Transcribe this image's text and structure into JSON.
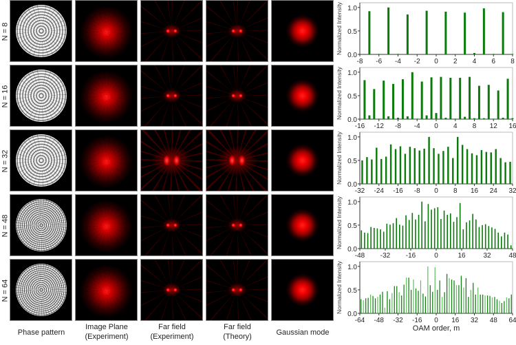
{
  "rows": [
    {
      "label": "N = 8",
      "dense": false,
      "far_big": false
    },
    {
      "label": "N = 16",
      "dense": false,
      "far_big": false
    },
    {
      "label": "N = 32",
      "dense": false,
      "far_big": true
    },
    {
      "label": "N = 48",
      "dense": true,
      "far_big": false
    },
    {
      "label": "N = 64",
      "dense": true,
      "far_big": false
    }
  ],
  "columns": [
    {
      "line1": "Phase pattern",
      "line2": ""
    },
    {
      "line1": "Image Plane",
      "line2": "(Experiment)"
    },
    {
      "line1": "Far field",
      "line2": "(Experiment)"
    },
    {
      "line1": "Far field",
      "line2": "(Theory)"
    },
    {
      "line1": "Gaussian mode",
      "line2": ""
    }
  ],
  "colors": {
    "bar": "#0a7a0a",
    "bar_light": "#5fbf5f",
    "axis": "#888888",
    "spot": "#ff0000"
  },
  "chart_data": [
    {
      "type": "bar",
      "N": 8,
      "ylabel": "Normalized Intensity",
      "xlabel": "",
      "xlim": [
        -8,
        8
      ],
      "ylim": [
        0,
        1.1
      ],
      "yticks": [
        0.0,
        0.5,
        1.0
      ],
      "xticks": [
        -8,
        -6,
        -4,
        -2,
        0,
        2,
        4,
        6,
        8
      ],
      "m": [
        -7,
        -6,
        -5,
        -4,
        -3,
        -2,
        -1,
        0,
        1,
        2,
        3,
        4,
        5,
        6,
        7,
        8
      ],
      "values": [
        0.92,
        0.01,
        1.0,
        0.01,
        0.85,
        0.0,
        0.93,
        0.0,
        0.91,
        0.0,
        0.89,
        0.03,
        0.98,
        0.01,
        0.9,
        0.01
      ]
    },
    {
      "type": "bar",
      "N": 16,
      "ylabel": "Normalized Intensity",
      "xlabel": "",
      "xlim": [
        -16,
        16
      ],
      "ylim": [
        0,
        1.1
      ],
      "yticks": [
        0.0,
        0.5,
        1.0
      ],
      "xticks": [
        -16,
        -12,
        -8,
        -4,
        0,
        4,
        8,
        12,
        16
      ],
      "m": [
        -15,
        -14,
        -13,
        -12,
        -11,
        -10,
        -9,
        -8,
        -7,
        -6,
        -5,
        -4,
        -3,
        -2,
        -1,
        0,
        1,
        2,
        3,
        4,
        5,
        6,
        7,
        8,
        9,
        10,
        11,
        12,
        13,
        14,
        15,
        16
      ],
      "values": [
        0.83,
        0.08,
        0.64,
        0.01,
        0.82,
        0.06,
        0.75,
        0.03,
        0.85,
        0.06,
        1.0,
        0.01,
        0.8,
        0.08,
        0.89,
        0.13,
        0.9,
        0.03,
        0.88,
        0.01,
        0.88,
        0.05,
        0.9,
        0.02,
        0.71,
        0.02,
        0.73,
        0.01,
        0.61,
        0.03,
        0.86,
        0.02
      ]
    },
    {
      "type": "bar",
      "N": 32,
      "ylabel": "Normalized Intensity",
      "xlabel": "",
      "xlim": [
        -32,
        32
      ],
      "ylim": [
        0,
        1.1
      ],
      "yticks": [
        0.0,
        0.5,
        1.0
      ],
      "xticks": [
        -32,
        -24,
        -16,
        -8,
        0,
        8,
        16,
        24,
        32
      ],
      "m": [
        -31,
        -29,
        -27,
        -25,
        -23,
        -21,
        -19,
        -17,
        -15,
        -13,
        -11,
        -9,
        -7,
        -5,
        -3,
        -1,
        1,
        3,
        5,
        7,
        9,
        11,
        13,
        15,
        17,
        19,
        21,
        23,
        25,
        27,
        29,
        31
      ],
      "values": [
        0.5,
        0.57,
        0.52,
        0.77,
        0.53,
        0.58,
        0.84,
        0.74,
        0.8,
        0.64,
        0.79,
        0.76,
        0.71,
        0.75,
        1.0,
        0.76,
        0.64,
        0.7,
        0.79,
        0.55,
        1.0,
        0.83,
        0.74,
        0.65,
        0.61,
        0.72,
        0.68,
        0.67,
        0.74,
        0.55,
        0.46,
        0.47
      ]
    },
    {
      "type": "bar",
      "N": 48,
      "ylabel": "Normalized Intensity",
      "xlabel": "",
      "xlim": [
        -48,
        48
      ],
      "ylim": [
        0,
        1.1
      ],
      "yticks": [
        0.0,
        0.5,
        1.0
      ],
      "xticks": [
        -48,
        -32,
        -16,
        0,
        16,
        32,
        48
      ],
      "m": [
        -47,
        -45,
        -43,
        -41,
        -39,
        -37,
        -35,
        -33,
        -31,
        -29,
        -27,
        -25,
        -23,
        -21,
        -19,
        -17,
        -15,
        -13,
        -11,
        -9,
        -7,
        -5,
        -3,
        -1,
        1,
        3,
        5,
        7,
        9,
        11,
        13,
        15,
        17,
        19,
        21,
        23,
        25,
        27,
        29,
        31,
        33,
        35,
        37,
        39,
        41,
        43,
        45,
        47
      ],
      "values": [
        0.39,
        0.34,
        0.33,
        0.46,
        0.44,
        0.43,
        0.41,
        0.36,
        0.53,
        0.51,
        0.54,
        0.65,
        0.51,
        0.49,
        0.71,
        0.61,
        0.76,
        0.62,
        0.72,
        1.0,
        0.58,
        0.95,
        0.83,
        0.86,
        0.88,
        0.63,
        0.81,
        0.72,
        0.75,
        0.57,
        0.67,
        0.97,
        0.41,
        0.56,
        0.6,
        0.74,
        0.62,
        0.46,
        0.5,
        0.52,
        0.48,
        0.45,
        0.42,
        0.34,
        0.26,
        0.34,
        0.3,
        0.07
      ]
    },
    {
      "type": "bar",
      "N": 64,
      "ylabel": "Normalized Intensity",
      "xlabel": "OAM order, m",
      "xlim": [
        -64,
        64
      ],
      "ylim": [
        0,
        1.1
      ],
      "yticks": [
        0.0,
        0.5,
        1.0
      ],
      "xticks": [
        -64,
        -48,
        -32,
        -16,
        0,
        16,
        32,
        48,
        64
      ],
      "m": [
        -63,
        -61,
        -59,
        -57,
        -55,
        -53,
        -51,
        -49,
        -47,
        -45,
        -43,
        -41,
        -39,
        -37,
        -35,
        -33,
        -31,
        -29,
        -27,
        -25,
        -23,
        -21,
        -19,
        -17,
        -15,
        -13,
        -11,
        -9,
        -7,
        -5,
        -3,
        -1,
        1,
        3,
        5,
        7,
        9,
        11,
        13,
        15,
        17,
        19,
        21,
        23,
        25,
        27,
        29,
        31,
        33,
        35,
        37,
        39,
        41,
        43,
        45,
        47,
        49,
        51,
        53,
        55,
        57,
        59,
        61,
        63
      ],
      "values": [
        0.3,
        0.28,
        0.32,
        0.33,
        0.4,
        0.37,
        0.32,
        0.35,
        0.4,
        0.46,
        0.12,
        0.47,
        0.3,
        0.43,
        0.58,
        0.58,
        0.45,
        0.38,
        0.61,
        0.76,
        0.76,
        0.5,
        0.72,
        0.53,
        0.48,
        0.7,
        0.42,
        0.36,
        1.0,
        0.6,
        0.46,
        0.98,
        0.5,
        0.7,
        0.35,
        0.45,
        0.84,
        0.75,
        0.72,
        0.7,
        0.6,
        0.6,
        0.8,
        0.55,
        0.75,
        0.35,
        0.5,
        0.65,
        0.4,
        0.55,
        0.4,
        0.4,
        0.38,
        0.38,
        0.37,
        0.34,
        0.35,
        0.3,
        0.27,
        0.22,
        0.26,
        0.34,
        0.32,
        0.4
      ]
    }
  ]
}
